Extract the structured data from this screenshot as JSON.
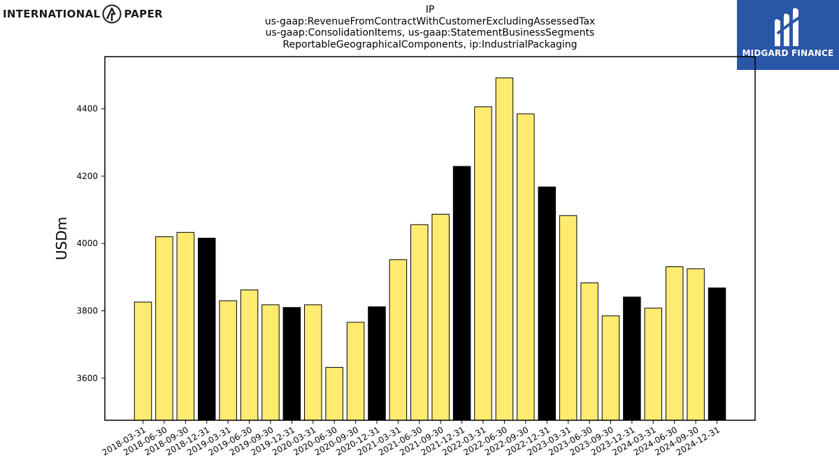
{
  "header": {
    "company_logo_left": "INTERNATIONAL",
    "company_logo_right": "PAPER",
    "brand_name": "MIDGARD FINANCE"
  },
  "title_lines": [
    "IP",
    "us-gaap:RevenueFromContractWithCustomerExcludingAssessedTax",
    "us-gaap:ConsolidationItems, us-gaap:StatementBusinessSegments",
    "ReportableGeographicalComponents, ip:IndustrialPackaging"
  ],
  "colors": {
    "quarter_bar": "#ffeb70",
    "year_end_bar": "#000000",
    "brand_box": "#2a56a8"
  },
  "chart_data": {
    "type": "bar",
    "title": "IP us-gaap:RevenueFromContractWithCustomerExcludingAssessedTax us-gaap:ConsolidationItems, us-gaap:StatementBusinessSegments ReportableGeographicalComponents, ip:IndustrialPackaging",
    "xlabel": "",
    "ylabel": "USDm",
    "ylim": [
      3475,
      4555
    ],
    "yticks": [
      3600,
      3800,
      4000,
      4200,
      4400
    ],
    "categories": [
      "2018-03-31",
      "2018-06-30",
      "2018-09-30",
      "2018-12-31",
      "2019-03-31",
      "2019-06-30",
      "2019-09-30",
      "2019-12-31",
      "2020-03-31",
      "2020-06-30",
      "2020-09-30",
      "2020-12-31",
      "2021-03-31",
      "2021-06-30",
      "2021-09-30",
      "2021-12-31",
      "2022-03-31",
      "2022-06-30",
      "2022-09-30",
      "2022-12-31",
      "2023-03-31",
      "2023-06-30",
      "2023-09-30",
      "2023-12-31",
      "2024-03-31",
      "2024-06-30",
      "2024-09-30",
      "2024-12-31"
    ],
    "values": [
      3826,
      4020,
      4033,
      4016,
      3830,
      3862,
      3818,
      3810,
      3818,
      3632,
      3766,
      3812,
      3952,
      4056,
      4087,
      4229,
      4406,
      4492,
      4385,
      4168,
      4083,
      3883,
      3785,
      3841,
      3808,
      3931,
      3925,
      3868
    ],
    "year_end": [
      false,
      false,
      false,
      true,
      false,
      false,
      false,
      true,
      false,
      false,
      false,
      true,
      false,
      false,
      false,
      true,
      false,
      false,
      false,
      true,
      false,
      false,
      false,
      true,
      false,
      false,
      false,
      true
    ],
    "grid": false,
    "legend": "none"
  }
}
